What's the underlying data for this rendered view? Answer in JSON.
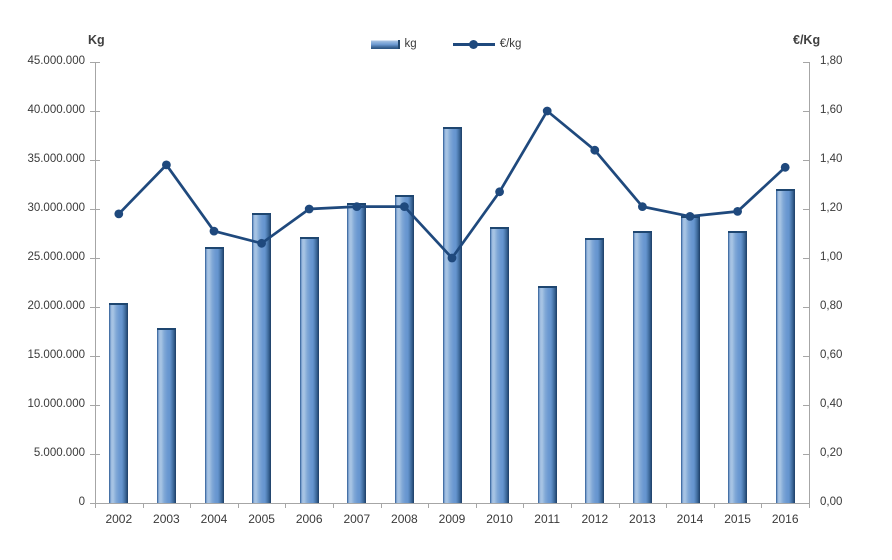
{
  "chart_data": {
    "type": "bar",
    "subtype": "combo-bar-line",
    "title": "",
    "categories": [
      "2002",
      "2003",
      "2004",
      "2005",
      "2006",
      "2007",
      "2008",
      "2009",
      "2010",
      "2011",
      "2012",
      "2013",
      "2014",
      "2015",
      "2016"
    ],
    "series": [
      {
        "name": "kg",
        "type": "bar",
        "axis": "left",
        "values": [
          20400000,
          17900000,
          26100000,
          29600000,
          27100000,
          30600000,
          31400000,
          38400000,
          28200000,
          22100000,
          27000000,
          27800000,
          29300000,
          27800000,
          32000000
        ]
      },
      {
        "name": "€/kg",
        "type": "line",
        "axis": "right",
        "values": [
          1.18,
          1.38,
          1.11,
          1.06,
          1.2,
          1.21,
          1.21,
          1.0,
          1.27,
          1.6,
          1.44,
          1.21,
          1.17,
          1.19,
          1.37
        ]
      }
    ],
    "left_axis": {
      "title": "Kg",
      "min": 0,
      "max": 45000000,
      "step": 5000000,
      "tick_labels": [
        "0",
        "5.000.000",
        "10.000.000",
        "15.000.000",
        "20.000.000",
        "25.000.000",
        "30.000.000",
        "35.000.000",
        "40.000.000",
        "45.000.000"
      ]
    },
    "right_axis": {
      "title": "€/Kg",
      "min": 0,
      "max": 1.8,
      "step": 0.2,
      "tick_labels": [
        "0,00",
        "0,20",
        "0,40",
        "0,60",
        "0,80",
        "1,00",
        "1,20",
        "1,40",
        "1,60",
        "1,80"
      ]
    },
    "legend": {
      "position": "top-center",
      "entries": [
        {
          "label": "kg",
          "swatch": "bar"
        },
        {
          "label": "€/kg",
          "swatch": "line-marker"
        }
      ]
    },
    "grid": false,
    "colors": {
      "bar_body": "#6494ce",
      "bar_highlight": "#a9c6e5",
      "bar_shadow": "#274d78",
      "line": "#1f497d",
      "axis": "#a6a6a6",
      "text": "#3a3a3a",
      "background": "#ffffff"
    }
  }
}
